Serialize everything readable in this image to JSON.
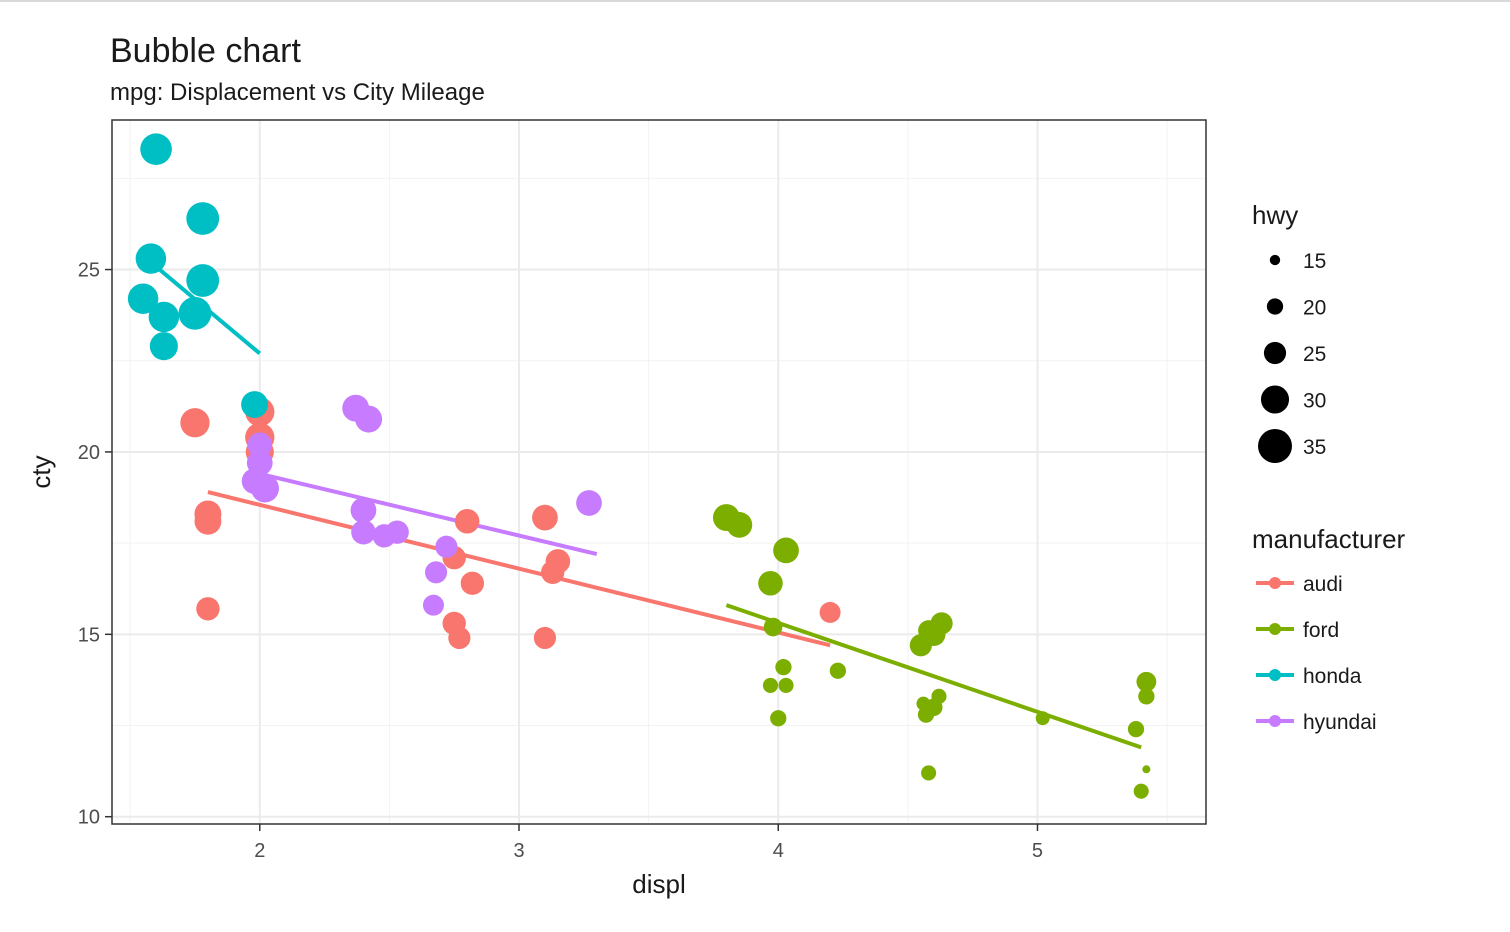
{
  "chart_data": {
    "type": "scatter",
    "title": "Bubble chart",
    "subtitle": "mpg: Displacement vs City Mileage",
    "xlabel": "displ",
    "ylabel": "cty",
    "xlim": [
      1.43,
      5.65
    ],
    "ylim": [
      9.8,
      29.1
    ],
    "xticks": [
      2,
      3,
      4,
      5
    ],
    "yticks": [
      10,
      15,
      20,
      25
    ],
    "grid": true,
    "size_legend": {
      "title": "hwy",
      "entries": [
        {
          "label": "15",
          "value": 15
        },
        {
          "label": "20",
          "value": 20
        },
        {
          "label": "25",
          "value": 25
        },
        {
          "label": "30",
          "value": 30
        },
        {
          "label": "35",
          "value": 35
        }
      ]
    },
    "color_legend": {
      "title": "manufacturer",
      "entries": [
        {
          "label": "audi",
          "color": "#F8766D"
        },
        {
          "label": "ford",
          "color": "#7CAE00"
        },
        {
          "label": "honda",
          "color": "#00BFC4"
        },
        {
          "label": "hyundai",
          "color": "#C77CFF"
        }
      ]
    },
    "series": [
      {
        "name": "audi",
        "color": "#F8766D",
        "points": [
          [
            1.8,
            18.1,
            29
          ],
          [
            1.8,
            18.3,
            29
          ],
          [
            1.75,
            20.8,
            31
          ],
          [
            1.8,
            15.7,
            26
          ],
          [
            2.0,
            20.4,
            31
          ],
          [
            2.0,
            20.0,
            30
          ],
          [
            2.0,
            21.1,
            31
          ],
          [
            2.8,
            18.1,
            27
          ],
          [
            2.75,
            17.1,
            26
          ],
          [
            2.82,
            16.4,
            26
          ],
          [
            2.75,
            15.3,
            26
          ],
          [
            2.77,
            14.9,
            25
          ],
          [
            3.1,
            18.2,
            28
          ],
          [
            3.15,
            17.0,
            27
          ],
          [
            3.13,
            16.7,
            26
          ],
          [
            3.1,
            14.9,
            25
          ],
          [
            4.2,
            15.6,
            24
          ]
        ],
        "trend": [
          [
            1.8,
            18.9
          ],
          [
            4.2,
            14.7
          ]
        ]
      },
      {
        "name": "ford",
        "color": "#7CAE00",
        "points": [
          [
            3.8,
            18.2,
            29
          ],
          [
            3.85,
            18.0,
            28
          ],
          [
            4.03,
            17.3,
            28
          ],
          [
            3.97,
            16.4,
            27
          ],
          [
            3.98,
            15.2,
            22
          ],
          [
            4.02,
            14.1,
            20
          ],
          [
            4.23,
            14.0,
            20
          ],
          [
            3.97,
            13.6,
            19
          ],
          [
            4.03,
            13.6,
            19
          ],
          [
            4.0,
            12.7,
            20
          ],
          [
            4.55,
            14.7,
            25
          ],
          [
            4.6,
            15.0,
            26
          ],
          [
            4.63,
            15.3,
            25
          ],
          [
            4.58,
            15.1,
            24
          ],
          [
            4.6,
            13.0,
            21
          ],
          [
            4.57,
            12.8,
            20
          ],
          [
            4.62,
            13.3,
            19
          ],
          [
            4.56,
            13.1,
            18
          ],
          [
            4.58,
            11.2,
            19
          ],
          [
            5.02,
            12.7,
            18
          ],
          [
            5.42,
            13.7,
            23
          ],
          [
            5.42,
            13.3,
            20
          ],
          [
            5.38,
            12.4,
            20
          ],
          [
            5.4,
            10.7,
            19
          ],
          [
            5.42,
            11.3,
            13
          ]
        ],
        "trend": [
          [
            3.8,
            15.8
          ],
          [
            5.4,
            11.9
          ]
        ]
      },
      {
        "name": "honda",
        "color": "#00BFC4",
        "points": [
          [
            1.6,
            28.3,
            33
          ],
          [
            1.78,
            26.4,
            34
          ],
          [
            1.58,
            25.3,
            32
          ],
          [
            1.78,
            24.7,
            34
          ],
          [
            1.55,
            24.2,
            32
          ],
          [
            1.63,
            23.7,
            32
          ],
          [
            1.75,
            23.8,
            34
          ],
          [
            1.63,
            22.9,
            30
          ],
          [
            1.98,
            21.3,
            29
          ]
        ],
        "trend": [
          [
            1.58,
            25.2
          ],
          [
            2.0,
            22.7
          ]
        ]
      },
      {
        "name": "hyundai",
        "color": "#C77CFF",
        "points": [
          [
            2.37,
            21.2,
            29
          ],
          [
            2.42,
            20.9,
            29
          ],
          [
            2.0,
            20.2,
            27
          ],
          [
            2.0,
            19.7,
            28
          ],
          [
            1.98,
            19.2,
            28
          ],
          [
            2.02,
            19.0,
            30
          ],
          [
            2.4,
            18.4,
            28
          ],
          [
            2.4,
            17.8,
            27
          ],
          [
            2.48,
            17.7,
            26
          ],
          [
            2.53,
            17.8,
            26
          ],
          [
            2.72,
            17.4,
            25
          ],
          [
            2.68,
            16.7,
            25
          ],
          [
            2.67,
            15.8,
            24
          ],
          [
            3.27,
            18.6,
            28
          ]
        ],
        "trend": [
          [
            2.0,
            19.4
          ],
          [
            3.3,
            17.2
          ]
        ]
      }
    ]
  }
}
